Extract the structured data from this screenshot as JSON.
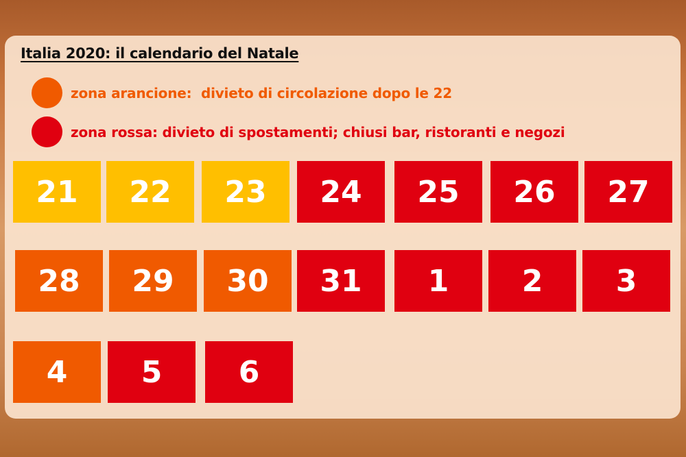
{
  "title": "Italia 2020: il calendario del Natale",
  "legend": [
    {
      "label": "zona arancione:  divieto di circolazione dopo le 22",
      "color": "#f05a00",
      "icon": "orange-zone-dot"
    },
    {
      "label": "zona rossa: divieto di spostamenti; chiusi bar, ristoranti e negozi",
      "color": "#e00010",
      "icon": "red-zone-dot"
    }
  ],
  "colors": {
    "yellow": "#ffbf00",
    "orange": "#f05a00",
    "red": "#e00010"
  },
  "days": [
    {
      "day": "21",
      "zone": "yellow"
    },
    {
      "day": "22",
      "zone": "yellow"
    },
    {
      "day": "23",
      "zone": "yellow"
    },
    {
      "day": "24",
      "zone": "red"
    },
    {
      "day": "25",
      "zone": "red"
    },
    {
      "day": "26",
      "zone": "red"
    },
    {
      "day": "27",
      "zone": "red"
    },
    {
      "day": "28",
      "zone": "orange"
    },
    {
      "day": "29",
      "zone": "orange"
    },
    {
      "day": "30",
      "zone": "orange"
    },
    {
      "day": "31",
      "zone": "red"
    },
    {
      "day": "1",
      "zone": "red"
    },
    {
      "day": "2",
      "zone": "red"
    },
    {
      "day": "3",
      "zone": "red"
    },
    {
      "day": "4",
      "zone": "orange"
    },
    {
      "day": "5",
      "zone": "red"
    },
    {
      "day": "6",
      "zone": "red"
    }
  ]
}
